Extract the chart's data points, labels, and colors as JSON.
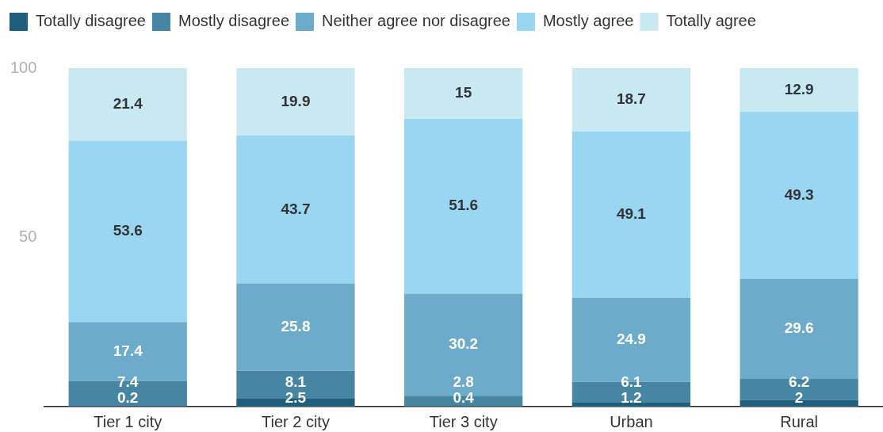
{
  "chart_data": {
    "type": "bar",
    "stacked": true,
    "legend": "top left",
    "data_labels": true,
    "categories": [
      "Tier 1 city",
      "Tier 2 city",
      "Tier 3 city",
      "Urban",
      "Rural"
    ],
    "series": [
      {
        "name": "Totally disagree",
        "color": "#1f5f7d",
        "values": [
          0.2,
          2.5,
          0.4,
          1.2,
          2
        ]
      },
      {
        "name": "Mostly disagree",
        "color": "#4686a3",
        "values": [
          7.4,
          8.1,
          2.8,
          6.1,
          6.2
        ]
      },
      {
        "name": "Neither agree nor disagree",
        "color": "#6cacca",
        "values": [
          17.4,
          25.8,
          30.2,
          24.9,
          29.6
        ]
      },
      {
        "name": "Mostly agree",
        "color": "#98d6f2",
        "values": [
          53.6,
          43.7,
          51.6,
          49.1,
          49.3
        ]
      },
      {
        "name": "Totally agree",
        "color": "#c8e8f2",
        "values": [
          21.4,
          19.9,
          15,
          18.7,
          12.9
        ]
      }
    ],
    "ylim": [
      0,
      100
    ],
    "yticks": [
      50,
      100
    ]
  }
}
